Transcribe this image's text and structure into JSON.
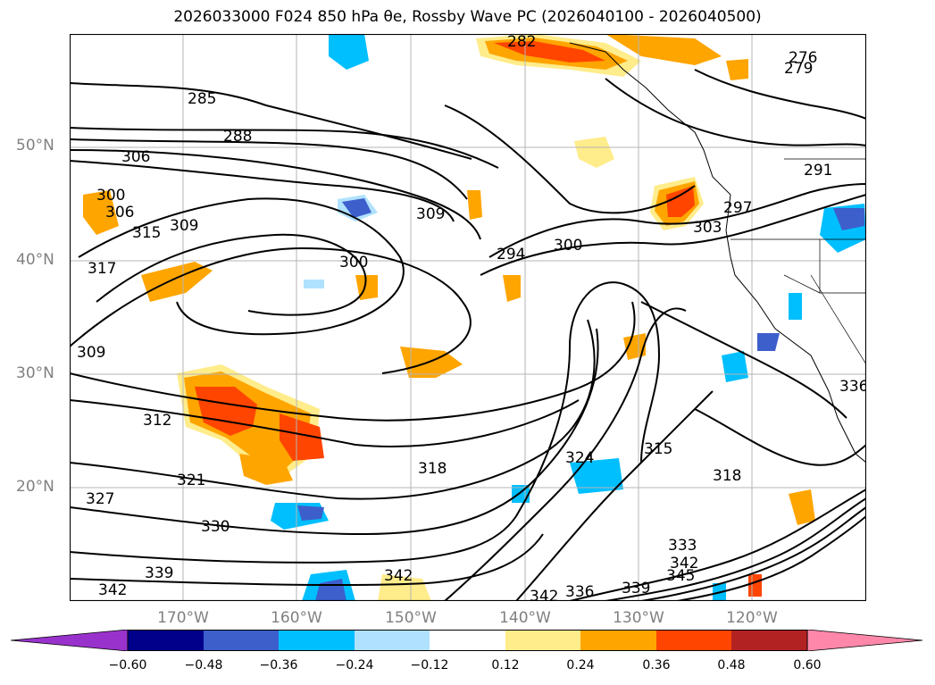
{
  "title": "2026033000 F024 850 hPa θe, Rossby Wave PC (2026040100 - 2026040500)",
  "map": {
    "lat_range": [
      10,
      60
    ],
    "lon_range": [
      -180,
      -110
    ],
    "lat_labels": [
      "50°N",
      "40°N",
      "30°N",
      "20°N"
    ],
    "lat_values": [
      50,
      40,
      30,
      20
    ],
    "lon_labels": [
      "170°W",
      "160°W",
      "150°W",
      "140°W",
      "130°W",
      "120°W"
    ],
    "lon_values": [
      -170,
      -160,
      -150,
      -140,
      -130,
      -120
    ]
  },
  "contour_labels": [
    "282",
    "276",
    "279",
    "285",
    "288",
    "306",
    "300",
    "306",
    "315",
    "309",
    "317",
    "309",
    "300",
    "294",
    "300",
    "297",
    "303",
    "291",
    "309",
    "312",
    "321",
    "327",
    "330",
    "339",
    "342",
    "318",
    "324",
    "315",
    "318",
    "342",
    "342",
    "336",
    "339",
    "333",
    "342",
    "345",
    "336"
  ],
  "colorbar": {
    "ticks": [
      "−0.60",
      "−0.48",
      "−0.36",
      "−0.24",
      "−0.12",
      "0.12",
      "0.24",
      "0.36",
      "0.48",
      "0.60"
    ],
    "colors": [
      "#9932cc",
      "#00008b",
      "#3c5fcc",
      "#00bfff",
      "#b0e2ff",
      "#ffffff",
      "#ffec8b",
      "#ffa500",
      "#ff4500",
      "#b22222",
      "#ff88aa"
    ]
  }
}
